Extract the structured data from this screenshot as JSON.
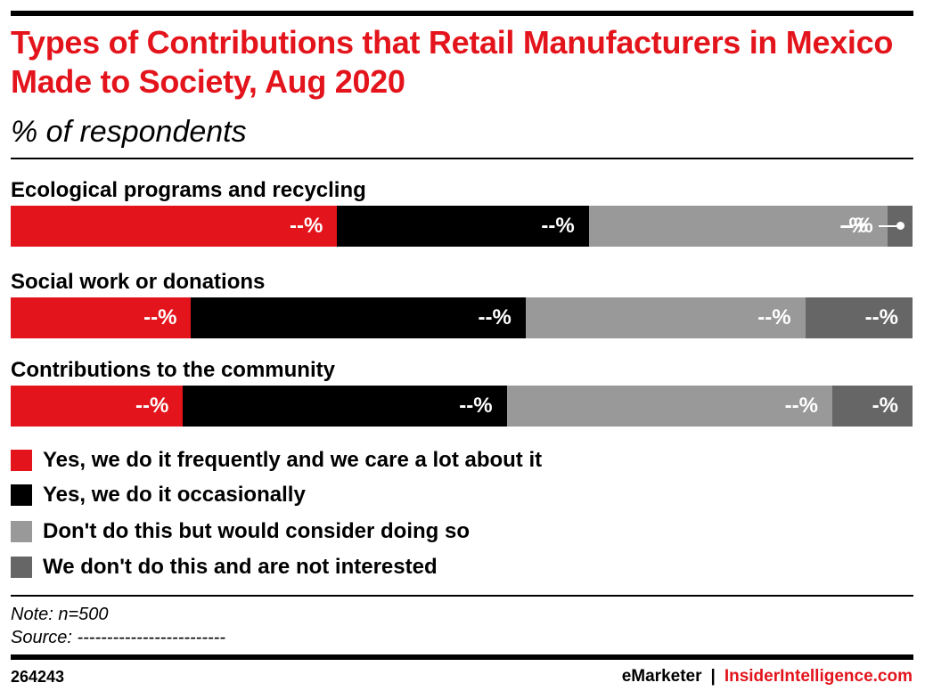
{
  "title": "Types of Contributions that Retail Manufacturers in Mexico Made to Society, Aug 2020",
  "subtitle": "% of respondents",
  "colors": {
    "red": "#e3141b",
    "black": "#000000",
    "light_gray": "#999999",
    "dark_gray": "#666666"
  },
  "chart_data": {
    "type": "bar",
    "orientation": "horizontal",
    "stacked": true,
    "categories": [
      "Ecological programs and recycling",
      "Social work or donations",
      "Contributions to the community"
    ],
    "series": [
      {
        "name": "Yes, we do it frequently and we care a lot about it",
        "color": "#e3141b",
        "values": [
          36.2,
          20.0,
          19.1
        ],
        "labels": [
          "--%",
          "--%",
          "--%"
        ]
      },
      {
        "name": "Yes, we do it occasionally",
        "color": "#000000",
        "values": [
          27.9,
          37.1,
          35.9
        ],
        "labels": [
          "--%",
          "--%",
          "--%"
        ]
      },
      {
        "name": "Don't do this but would consider doing so",
        "color": "#999999",
        "values": [
          33.1,
          31.0,
          36.1
        ],
        "labels": [
          "--%",
          "--%",
          "--%"
        ]
      },
      {
        "name": "We don't do this and are not interested",
        "color": "#666666",
        "values": [
          2.8,
          11.9,
          8.9
        ],
        "labels": [
          "-%",
          "--%",
          "-%"
        ]
      }
    ],
    "xlim": [
      0,
      100
    ],
    "legend_position": "bottom-left"
  },
  "note": "Note: n=500",
  "source": "Source: -------------------------",
  "footer": {
    "id": "264243",
    "brand_a": "eMarketer",
    "separator": "|",
    "brand_b": "InsiderIntelligence.com"
  }
}
